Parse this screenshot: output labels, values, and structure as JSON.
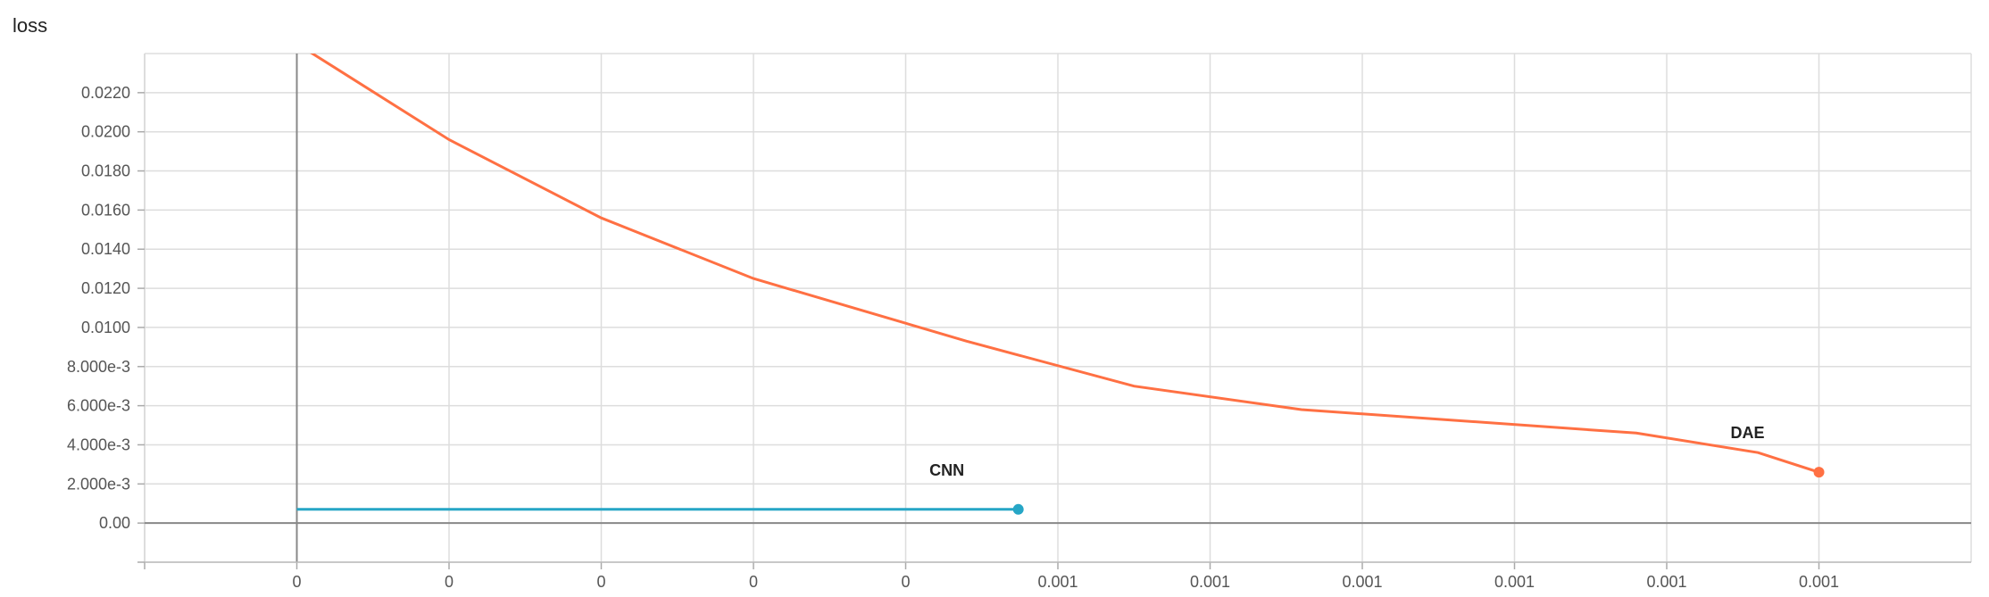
{
  "chart_data": {
    "type": "line",
    "title": "loss",
    "xlabel": "",
    "ylabel": "",
    "xlim": [
      -0.0001,
      0.0011
    ],
    "ylim": [
      -0.002,
      0.024
    ],
    "x_tick_labels": [
      "0",
      "0",
      "0",
      "0",
      "0",
      "0.001",
      "0.001",
      "0.001",
      "0.001",
      "0.001",
      "0.001"
    ],
    "x_tick_values": [
      0.0,
      0.0001,
      0.0002,
      0.0003,
      0.0004,
      0.0005,
      0.0006,
      0.0007,
      0.0008,
      0.0009,
      0.001
    ],
    "y_tick_labels": [
      "0.00",
      "2.000e-3",
      "4.000e-3",
      "6.000e-3",
      "8.000e-3",
      "0.0100",
      "0.0120",
      "0.0140",
      "0.0160",
      "0.0180",
      "0.0200",
      "0.0220"
    ],
    "y_tick_values": [
      0.0,
      0.002,
      0.004,
      0.006,
      0.008,
      0.01,
      0.012,
      0.014,
      0.016,
      0.018,
      0.02,
      0.022
    ],
    "grid": true,
    "series": [
      {
        "name": "DAE",
        "color": "#ff7043",
        "x": [
          0.0,
          0.0001,
          0.0002,
          0.0003,
          0.00044,
          0.00055,
          0.00066,
          0.00066,
          0.00088,
          0.00096,
          0.001
        ],
        "y": [
          0.0245,
          0.0196,
          0.0156,
          0.0125,
          0.0093,
          0.007,
          0.0058,
          0.0058,
          0.0046,
          0.0036,
          0.0026
        ]
      },
      {
        "name": "CNN",
        "color": "#26a6c6",
        "x": [
          0.0,
          0.0001,
          0.0002,
          0.0003,
          0.0004,
          0.000474
        ],
        "y": [
          0.0007,
          0.0007,
          0.0007,
          0.0007,
          0.0007,
          0.0007
        ]
      }
    ]
  }
}
